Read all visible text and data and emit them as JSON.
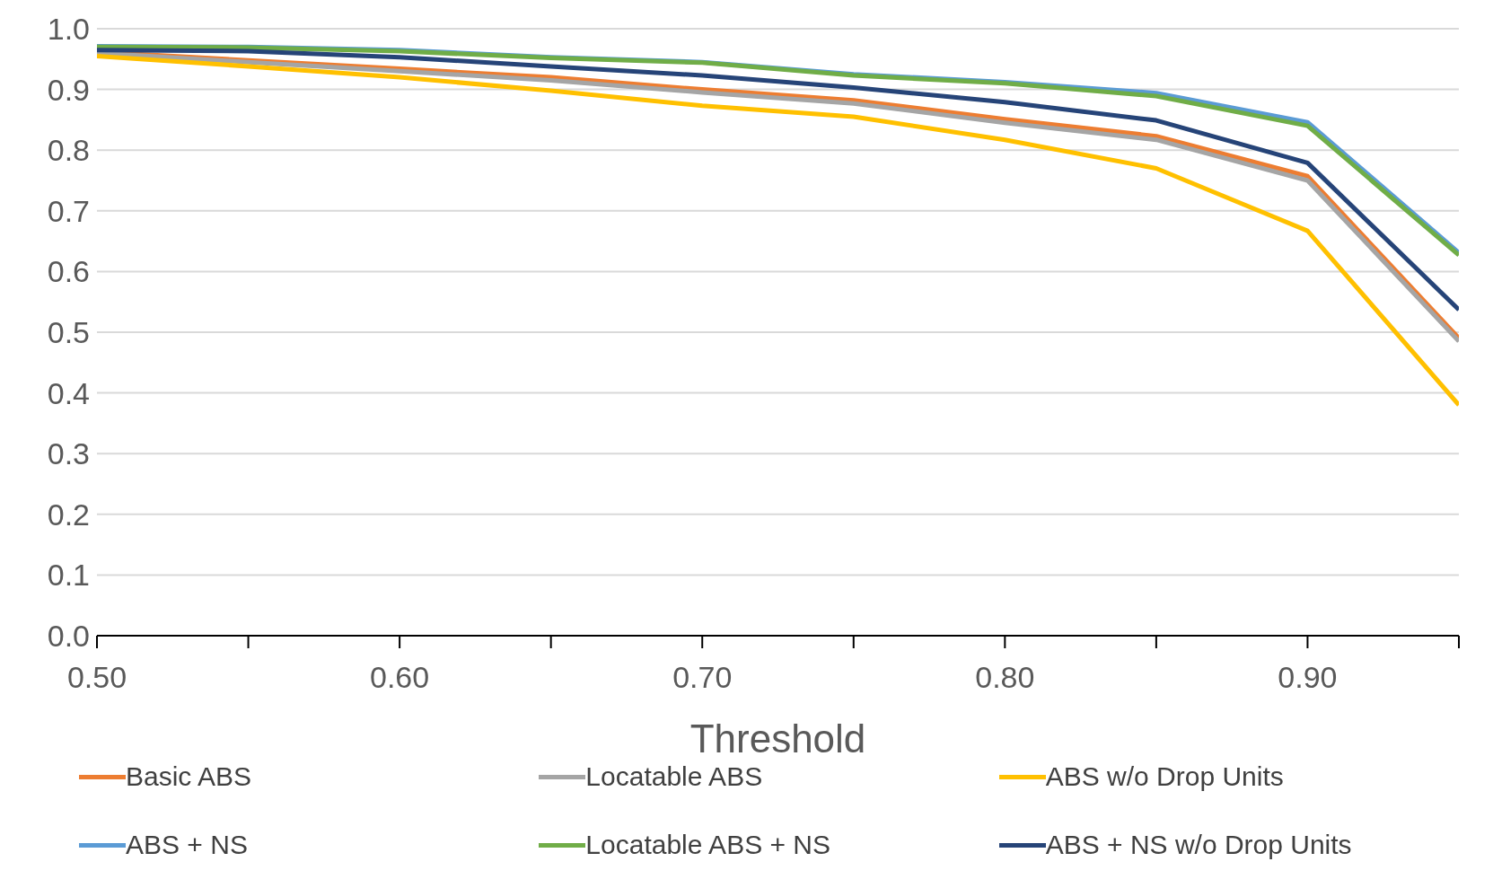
{
  "chart_data": {
    "type": "line",
    "xlabel": "Threshold",
    "x": [
      0.5,
      0.55,
      0.6,
      0.65,
      0.7,
      0.75,
      0.8,
      0.85,
      0.9,
      0.95
    ],
    "xlim": [
      0.5,
      0.95
    ],
    "xticks": [
      {
        "value": 0.5,
        "label": "0.50"
      },
      {
        "value": 0.55,
        "label": null
      },
      {
        "value": 0.6,
        "label": "0.60"
      },
      {
        "value": 0.65,
        "label": null
      },
      {
        "value": 0.7,
        "label": "0.70"
      },
      {
        "value": 0.75,
        "label": null
      },
      {
        "value": 0.8,
        "label": "0.80"
      },
      {
        "value": 0.85,
        "label": null
      },
      {
        "value": 0.9,
        "label": "0.90"
      },
      {
        "value": 0.95,
        "label": null
      }
    ],
    "ylim": [
      0,
      1
    ],
    "yticks": [
      {
        "value": 0,
        "label": "0.0"
      },
      {
        "value": 0.1,
        "label": "0.1"
      },
      {
        "value": 0.2,
        "label": "0.2"
      },
      {
        "value": 0.3,
        "label": "0.3"
      },
      {
        "value": 0.4,
        "label": "0.4"
      },
      {
        "value": 0.5,
        "label": "0.5"
      },
      {
        "value": 0.6,
        "label": "0.6"
      },
      {
        "value": 0.7,
        "label": "0.7"
      },
      {
        "value": 0.8,
        "label": "0.8"
      },
      {
        "value": 0.9,
        "label": "0.9"
      },
      {
        "value": 1,
        "label": "1.0"
      }
    ],
    "grid": "y",
    "legend": "bottom",
    "marker": "none",
    "line_style": "solid",
    "series": [
      {
        "name": "Basic ABS",
        "color": "#ed7d31",
        "values": [
          0.962,
          0.948,
          0.934,
          0.92,
          0.9,
          0.882,
          0.851,
          0.823,
          0.757,
          0.49
        ]
      },
      {
        "name": "Locatable ABS",
        "color": "#a5a5a5",
        "values": [
          0.96,
          0.945,
          0.93,
          0.915,
          0.895,
          0.877,
          0.845,
          0.817,
          0.75,
          0.485
        ]
      },
      {
        "name": "ABS w/o Drop Units",
        "color": "#ffc000",
        "values": [
          0.955,
          0.938,
          0.92,
          0.898,
          0.873,
          0.855,
          0.817,
          0.77,
          0.667,
          0.38
        ]
      },
      {
        "name": "ABS + NS",
        "color": "#5b9bd5",
        "values": [
          0.971,
          0.97,
          0.965,
          0.953,
          0.945,
          0.925,
          0.912,
          0.894,
          0.846,
          0.631
        ]
      },
      {
        "name": "Locatable ABS + NS",
        "color": "#70ad47",
        "values": [
          0.97,
          0.969,
          0.963,
          0.952,
          0.944,
          0.923,
          0.91,
          0.889,
          0.84,
          0.627
        ]
      },
      {
        "name": "ABS + NS w/o Drop Units",
        "color": "#264478",
        "values": [
          0.965,
          0.963,
          0.953,
          0.938,
          0.923,
          0.903,
          0.879,
          0.849,
          0.779,
          0.537
        ]
      }
    ]
  }
}
